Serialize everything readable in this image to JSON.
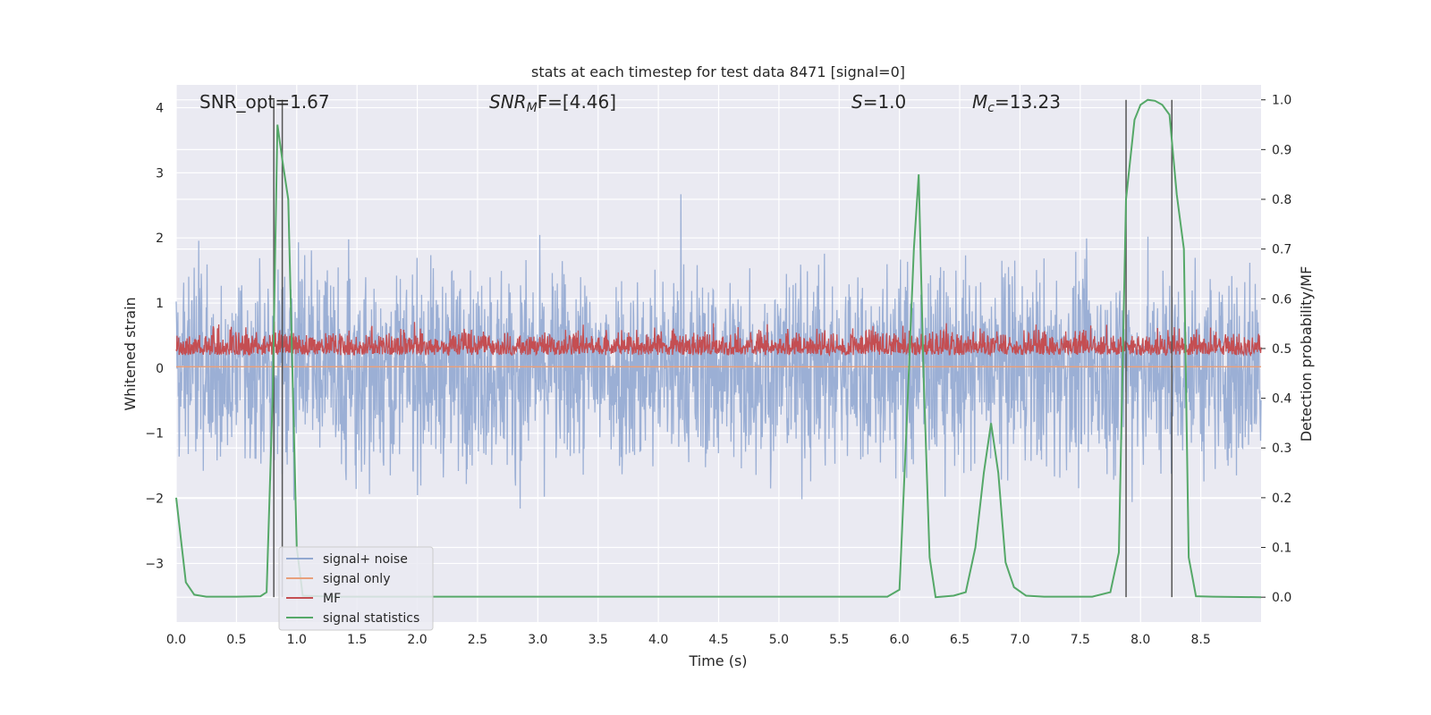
{
  "chart_data": {
    "type": "line",
    "title": "stats at each timestep for test data 8471 [signal=0]",
    "xlabel": "Time (s)",
    "ylabel_left": "Whitened strain",
    "ylabel_right": "Detection probability/MF",
    "xlim": [
      0.0,
      9.0
    ],
    "ylim_left": [
      -3.9,
      4.35
    ],
    "ylim_right": [
      -0.05,
      1.03
    ],
    "x_ticks": [
      "0.0",
      "0.5",
      "1.0",
      "1.5",
      "2.0",
      "2.5",
      "3.0",
      "3.5",
      "4.0",
      "4.5",
      "5.0",
      "5.5",
      "6.0",
      "6.5",
      "7.0",
      "7.5",
      "8.0",
      "8.5"
    ],
    "y_ticks_left": [
      "−3",
      "−2",
      "−1",
      "0",
      "1",
      "2",
      "3",
      "4"
    ],
    "y_ticks_right": [
      "0.0",
      "0.1",
      "0.2",
      "0.3",
      "0.4",
      "0.5",
      "0.6",
      "0.7",
      "0.8",
      "0.9",
      "1.0"
    ],
    "grid": true,
    "legend_position": "lower-left",
    "annotations": {
      "snr_opt": "SNR_opt=1.67",
      "snr_mf_sym": "SNR",
      "snr_mf_sub": "M",
      "snr_mf_rest": "F=[4.46]",
      "s_sym": "S",
      "s_rest": "=1.0",
      "mc_sym": "M",
      "mc_sub": "c",
      "mc_rest": "=13.23"
    },
    "vertical_markers_s": [
      0.81,
      0.88,
      7.88,
      8.26
    ],
    "series": [
      {
        "name": "signal+ noise",
        "color": "#92a8d1",
        "axis": "left",
        "description_values": {
          "mean": 0.0,
          "std": 0.75
        }
      },
      {
        "name": "signal only",
        "color": "#e8a07c",
        "axis": "left",
        "constant_value": 0.02
      },
      {
        "name": "MF",
        "color": "#c44e52",
        "axis": "left",
        "description_values": {
          "baseline": 0.2,
          "range": [
            0.0,
            0.85
          ]
        }
      },
      {
        "name": "signal statistics",
        "color": "#55a868",
        "axis": "right",
        "x": [
          0.0,
          0.08,
          0.15,
          0.25,
          0.5,
          0.7,
          0.75,
          0.8,
          0.84,
          0.88,
          0.93,
          0.97,
          1.0,
          1.05,
          1.3,
          5.9,
          6.0,
          6.06,
          6.12,
          6.16,
          6.2,
          6.25,
          6.3,
          6.35,
          6.45,
          6.55,
          6.63,
          6.7,
          6.76,
          6.82,
          6.88,
          6.95,
          7.05,
          7.2,
          7.6,
          7.75,
          7.82,
          7.88,
          7.95,
          8.0,
          8.06,
          8.12,
          8.18,
          8.24,
          8.3,
          8.36,
          8.4,
          8.46,
          8.6,
          9.0
        ],
        "values": [
          0.2,
          0.03,
          0.005,
          0.001,
          0.001,
          0.002,
          0.01,
          0.4,
          0.95,
          0.88,
          0.8,
          0.4,
          0.1,
          0.003,
          0.001,
          0.001,
          0.015,
          0.35,
          0.7,
          0.85,
          0.45,
          0.08,
          0.0,
          0.001,
          0.003,
          0.01,
          0.1,
          0.25,
          0.35,
          0.25,
          0.07,
          0.02,
          0.003,
          0.001,
          0.001,
          0.01,
          0.09,
          0.8,
          0.96,
          0.99,
          1.0,
          0.998,
          0.99,
          0.97,
          0.81,
          0.7,
          0.08,
          0.002,
          0.001,
          0.0
        ]
      }
    ]
  }
}
